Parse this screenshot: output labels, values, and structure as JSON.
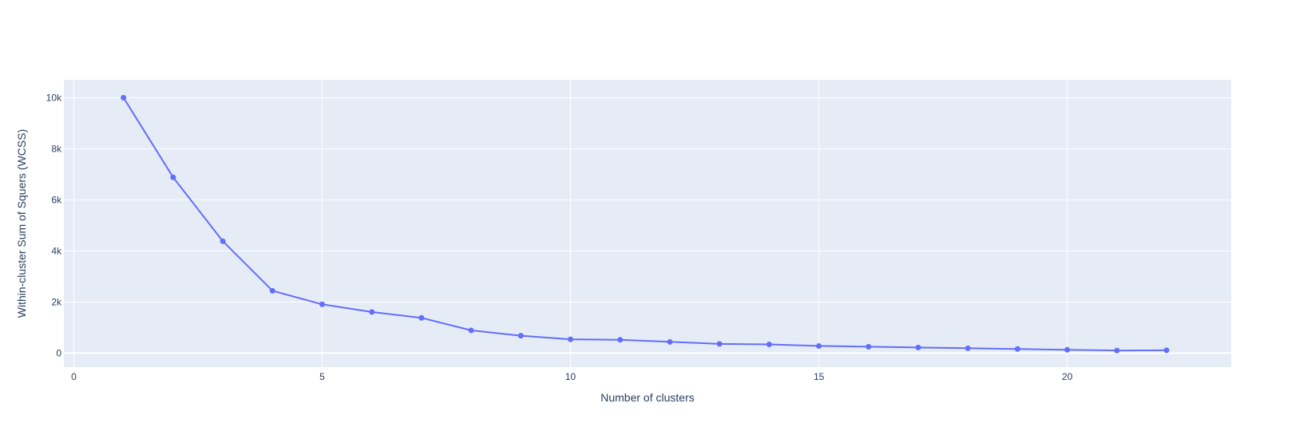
{
  "chart_data": {
    "type": "line",
    "title": "",
    "xlabel": "Number of clusters",
    "ylabel": "Within-cluster Sum of Squers (WCSS)",
    "xlim": [
      -0.2,
      23.3
    ],
    "ylim": [
      -550,
      10700
    ],
    "x_ticks": [
      0,
      5,
      10,
      15,
      20
    ],
    "x_tick_labels": [
      "0",
      "5",
      "10",
      "15",
      "20"
    ],
    "y_ticks": [
      0,
      2000,
      4000,
      6000,
      8000,
      10000
    ],
    "y_tick_labels": [
      "0",
      "2k",
      "4k",
      "6k",
      "8k",
      "10k"
    ],
    "grid": true,
    "series": [
      {
        "x": [
          1,
          2,
          3,
          4,
          5,
          6,
          7,
          8,
          9,
          10,
          11,
          12,
          13,
          14,
          15,
          16,
          17,
          18,
          19,
          20,
          21,
          22
        ],
        "values": [
          10000,
          6880,
          4380,
          2440,
          1910,
          1610,
          1380,
          890,
          680,
          540,
          520,
          440,
          360,
          340,
          280,
          250,
          220,
          190,
          160,
          130,
          100,
          110
        ],
        "color": "#636efa"
      }
    ],
    "colors": {
      "plot_background": "#e5ecf6",
      "grid": "#ffffff",
      "text": "#2a3f5f",
      "line": "#636efa"
    }
  }
}
